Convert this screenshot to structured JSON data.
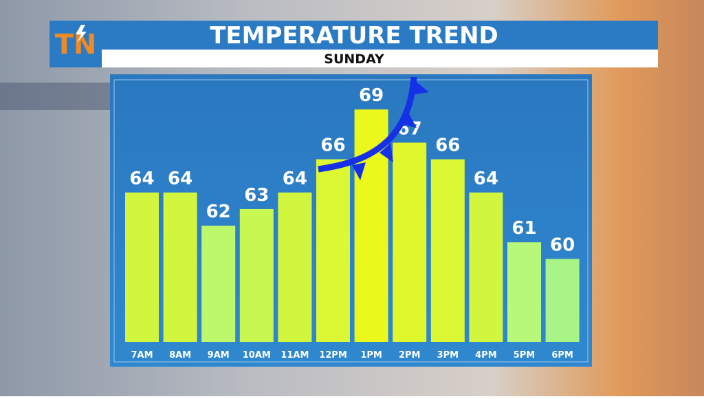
{
  "brand": "TN",
  "chart_data": {
    "type": "bar",
    "title": "TEMPERATURE TREND",
    "subtitle": "SUNDAY",
    "categories": [
      "7AM",
      "8AM",
      "9AM",
      "10AM",
      "11AM",
      "12PM",
      "1PM",
      "2PM",
      "3PM",
      "4PM",
      "5PM",
      "6PM"
    ],
    "values": [
      64,
      64,
      62,
      63,
      64,
      66,
      69,
      67,
      66,
      64,
      61,
      60
    ],
    "colors": [
      "#d2f53e",
      "#d2f53e",
      "#bdf86c",
      "#c9f752",
      "#d2f53e",
      "#dcf734",
      "#ebf81c",
      "#e0f72c",
      "#dcf734",
      "#d2f53e",
      "#b7f77a",
      "#a9f486"
    ],
    "ylim": [
      55,
      70
    ]
  }
}
